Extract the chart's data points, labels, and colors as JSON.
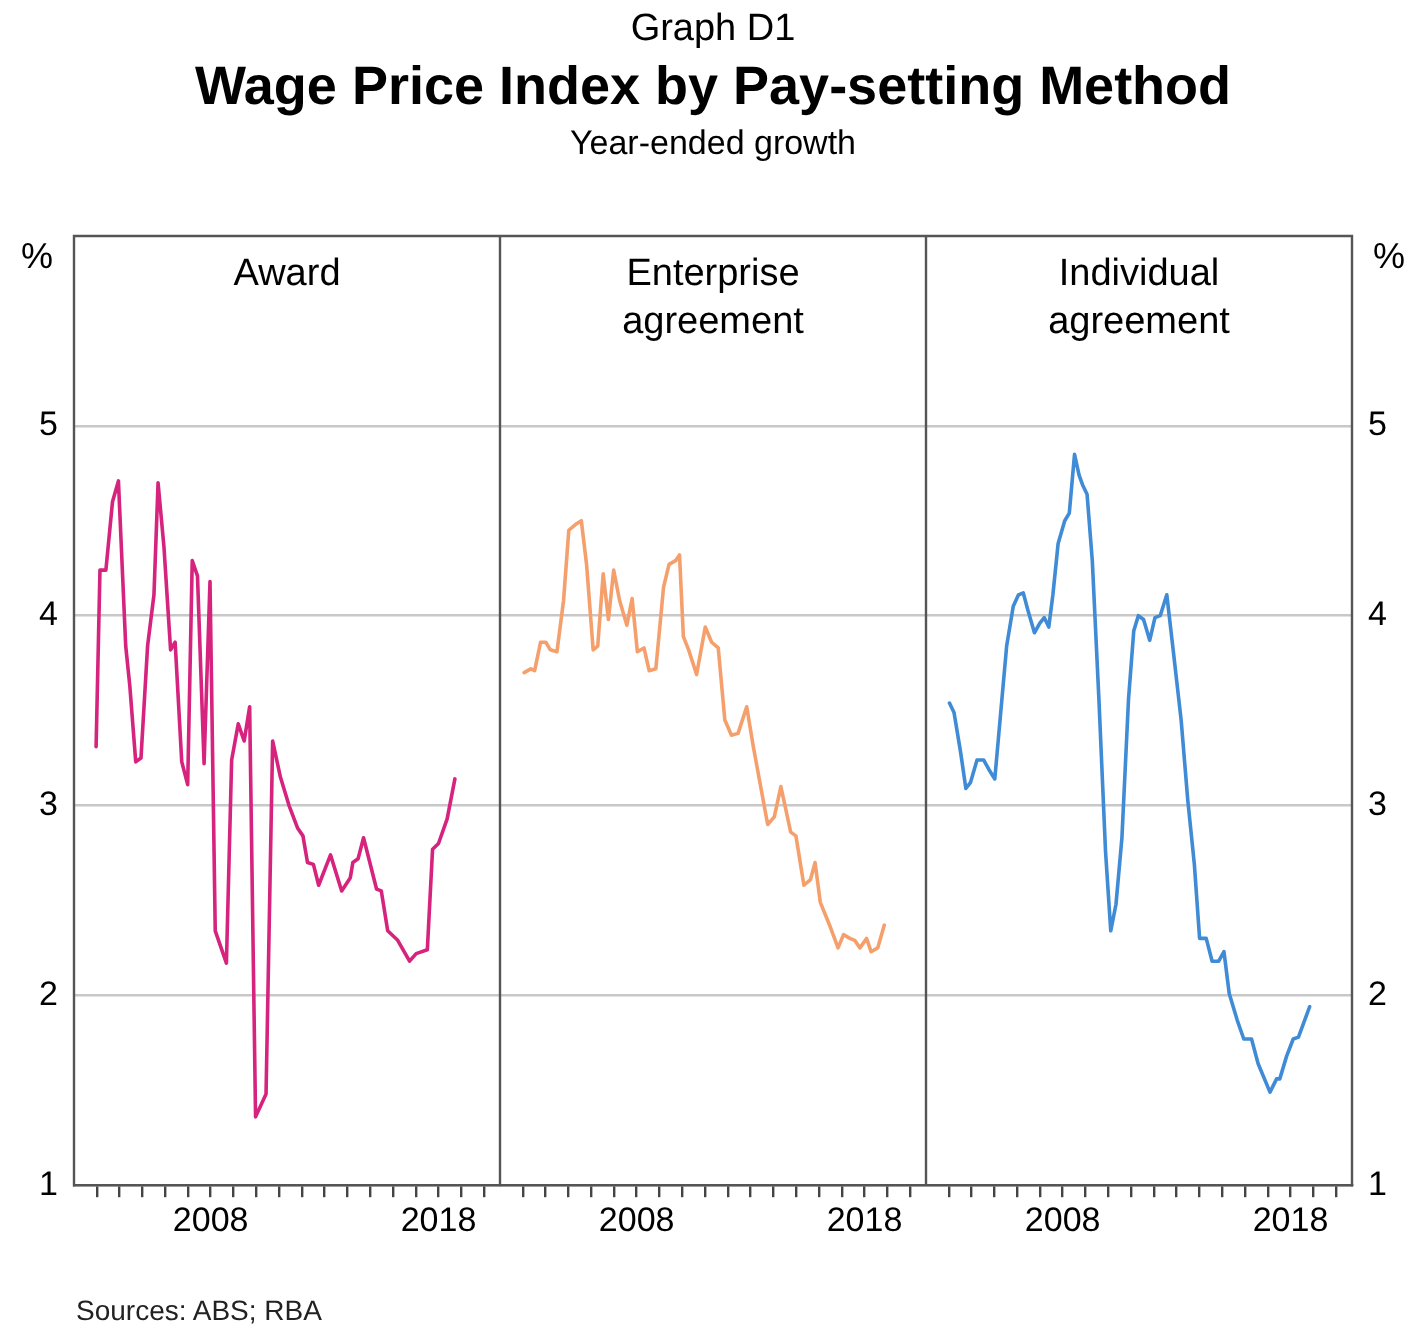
{
  "chart_data": [
    {
      "type": "other",
      "title": "Wage Price Index by Pay-setting Method",
      "subtitle": "Year-ended growth",
      "annotations": [
        "Graph D1"
      ]
    },
    {
      "type": "line",
      "annotations": [
        "Sources: ABS; RBA"
      ],
      "ylabel": "%",
      "grid": "y",
      "marker": "none",
      "line_style": "solid",
      "xlim": [
        2002,
        2020.7
      ],
      "xticks": [
        {
          "value": 2003,
          "label": null
        },
        {
          "value": 2004,
          "label": null
        },
        {
          "value": 2005,
          "label": null
        },
        {
          "value": 2006,
          "label": null
        },
        {
          "value": 2007,
          "label": null
        },
        {
          "value": 2008,
          "label": "2008"
        },
        {
          "value": 2009,
          "label": null
        },
        {
          "value": 2010,
          "label": null
        },
        {
          "value": 2011,
          "label": null
        },
        {
          "value": 2012,
          "label": null
        },
        {
          "value": 2013,
          "label": null
        },
        {
          "value": 2014,
          "label": null
        },
        {
          "value": 2015,
          "label": null
        },
        {
          "value": 2016,
          "label": null
        },
        {
          "value": 2017,
          "label": null
        },
        {
          "value": 2018,
          "label": "2018"
        },
        {
          "value": 2019,
          "label": null
        },
        {
          "value": 2020,
          "label": null
        }
      ],
      "ylim": [
        1,
        6
      ],
      "yticks": [
        1,
        2,
        3,
        4,
        5
      ],
      "series": [
        {
          "name": "Award",
          "color": "#d6237e",
          "x": [
            2002.97,
            2003.14,
            2003.4,
            2003.69,
            2003.95,
            2004.27,
            2004.45,
            2004.71,
            2004.94,
            2005.23,
            2005.51,
            2005.69,
            2005.95,
            2006.24,
            2006.44,
            2006.73,
            2006.99,
            2007.19,
            2007.42,
            2007.71,
            2007.97,
            2008.2,
            2008.69,
            2008.92,
            2009.21,
            2009.47,
            2009.71,
            2009.97,
            2010.43,
            2010.72,
            2011.06,
            2011.44,
            2011.82,
            2012.05,
            2012.25,
            2012.51,
            2012.74,
            2013.26,
            2013.75,
            2014.13,
            2014.24,
            2014.47,
            2014.71,
            2015.28,
            2015.49,
            2015.77,
            2016.21,
            2016.73,
            2017.02,
            2017.51,
            2017.74,
            2018,
            2018.38,
            2018.72
          ],
          "values": [
            3.31,
            4.24,
            4.24,
            4.6,
            4.71,
            3.84,
            3.63,
            3.23,
            3.25,
            3.84,
            4.11,
            4.7,
            4.36,
            3.82,
            3.86,
            3.23,
            3.11,
            4.29,
            4.21,
            3.22,
            4.18,
            2.34,
            2.17,
            3.24,
            3.43,
            3.34,
            3.52,
            1.36,
            1.48,
            3.34,
            3.15,
            3.0,
            2.88,
            2.84,
            2.7,
            2.69,
            2.58,
            2.74,
            2.55,
            2.62,
            2.7,
            2.72,
            2.83,
            2.56,
            2.55,
            2.34,
            2.29,
            2.18,
            2.22,
            2.24,
            2.77,
            2.8,
            2.93,
            3.14
          ]
        }
      ]
    },
    {
      "type": "line",
      "grid": "y",
      "marker": "none",
      "line_style": "solid",
      "tick_labels": "x",
      "xlim": [
        2002,
        2020.7
      ],
      "xticks": [
        {
          "value": 2003,
          "label": null
        },
        {
          "value": 2004,
          "label": null
        },
        {
          "value": 2005,
          "label": null
        },
        {
          "value": 2006,
          "label": null
        },
        {
          "value": 2007,
          "label": null
        },
        {
          "value": 2008,
          "label": "2008"
        },
        {
          "value": 2009,
          "label": null
        },
        {
          "value": 2010,
          "label": null
        },
        {
          "value": 2011,
          "label": null
        },
        {
          "value": 2012,
          "label": null
        },
        {
          "value": 2013,
          "label": null
        },
        {
          "value": 2014,
          "label": null
        },
        {
          "value": 2015,
          "label": null
        },
        {
          "value": 2016,
          "label": null
        },
        {
          "value": 2017,
          "label": null
        },
        {
          "value": 2018,
          "label": "2018"
        },
        {
          "value": 2019,
          "label": null
        },
        {
          "value": 2020,
          "label": null
        }
      ],
      "ylim": [
        1,
        6
      ],
      "yticks": [
        1,
        2,
        3,
        4,
        5
      ],
      "series": [
        {
          "name": "Enterprise agreement",
          "color": "#f5a06c",
          "x": [
            2003.06,
            2003.35,
            2003.52,
            2003.78,
            2004.01,
            2004.21,
            2004.5,
            2004.79,
            2005.02,
            2005.31,
            2005.57,
            2005.8,
            2006.09,
            2006.29,
            2006.53,
            2006.76,
            2006.99,
            2007.25,
            2007.57,
            2007.8,
            2008.03,
            2008.32,
            2008.55,
            2008.84,
            2009.18,
            2009.42,
            2009.71,
            2009.88,
            2010.05,
            2010.28,
            2010.63,
            2011.01,
            2011.29,
            2011.58,
            2011.87,
            2012.16,
            2012.45,
            2012.83,
            2013.12,
            2013.75,
            2014.04,
            2014.33,
            2014.76,
            2014.99,
            2015.34,
            2015.63,
            2015.83,
            2016.06,
            2016.5,
            2016.84,
            2017.08,
            2017.36,
            2017.57,
            2017.8,
            2018.09,
            2018.29,
            2018.58,
            2018.87
          ],
          "values": [
            3.7,
            3.72,
            3.71,
            3.86,
            3.86,
            3.82,
            3.81,
            4.08,
            4.45,
            4.48,
            4.5,
            4.27,
            3.82,
            3.84,
            4.22,
            3.98,
            4.24,
            4.08,
            3.95,
            4.09,
            3.81,
            3.83,
            3.71,
            3.72,
            4.15,
            4.27,
            4.29,
            4.32,
            3.89,
            3.82,
            3.69,
            3.94,
            3.86,
            3.83,
            3.45,
            3.37,
            3.38,
            3.52,
            3.31,
            2.9,
            2.94,
            3.1,
            2.86,
            2.84,
            2.58,
            2.61,
            2.7,
            2.49,
            2.36,
            2.25,
            2.32,
            2.3,
            2.29,
            2.25,
            2.3,
            2.23,
            2.25,
            2.37
          ]
        }
      ]
    },
    {
      "type": "line",
      "y2label": "%",
      "grid": "y",
      "marker": "none",
      "line_style": "solid",
      "xlim": [
        2002,
        2020.7
      ],
      "xticks": [
        {
          "value": 2003,
          "label": null
        },
        {
          "value": 2004,
          "label": null
        },
        {
          "value": 2005,
          "label": null
        },
        {
          "value": 2006,
          "label": null
        },
        {
          "value": 2007,
          "label": null
        },
        {
          "value": 2008,
          "label": "2008"
        },
        {
          "value": 2009,
          "label": null
        },
        {
          "value": 2010,
          "label": null
        },
        {
          "value": 2011,
          "label": null
        },
        {
          "value": 2012,
          "label": null
        },
        {
          "value": 2013,
          "label": null
        },
        {
          "value": 2014,
          "label": null
        },
        {
          "value": 2015,
          "label": null
        },
        {
          "value": 2016,
          "label": null
        },
        {
          "value": 2017,
          "label": null
        },
        {
          "value": 2018,
          "label": "2018"
        },
        {
          "value": 2019,
          "label": null
        },
        {
          "value": 2020,
          "label": null
        }
      ],
      "y2lim": [
        1,
        6
      ],
      "y2ticks": [
        1,
        2,
        3,
        4,
        5
      ],
      "series": [
        {
          "name": "Individual agreement",
          "color": "#3f8bd6",
          "axis": "y2",
          "x": [
            2003.03,
            2003.23,
            2003.52,
            2003.75,
            2003.95,
            2004.24,
            2004.53,
            2004.76,
            2005.02,
            2005.25,
            2005.54,
            2005.83,
            2006.06,
            2006.27,
            2006.47,
            2006.76,
            2006.99,
            2007.19,
            2007.39,
            2007.57,
            2007.8,
            2008.09,
            2008.29,
            2008.52,
            2008.72,
            2008.87,
            2009.07,
            2009.3,
            2009.59,
            2009.88,
            2010.11,
            2010.34,
            2010.6,
            2010.89,
            2011.12,
            2011.32,
            2011.55,
            2011.82,
            2012.05,
            2012.28,
            2012.57,
            2012.83,
            2013.2,
            2013.49,
            2013.78,
            2014.01,
            2014.3,
            2014.56,
            2014.85,
            2015.08,
            2015.31,
            2015.66,
            2015.95,
            2016.29,
            2016.58,
            2017.1,
            2017.39,
            2017.53,
            2017.83,
            2018.12,
            2018.35,
            2018.84
          ],
          "values": [
            3.54,
            3.49,
            3.28,
            3.09,
            3.12,
            3.24,
            3.24,
            3.19,
            3.14,
            3.45,
            3.84,
            4.05,
            4.11,
            4.12,
            4.03,
            3.91,
            3.96,
            3.99,
            3.94,
            4.11,
            4.38,
            4.5,
            4.54,
            4.85,
            4.74,
            4.69,
            4.64,
            4.29,
            3.56,
            2.76,
            2.34,
            2.48,
            2.83,
            3.56,
            3.92,
            4.0,
            3.98,
            3.87,
            3.99,
            4.0,
            4.11,
            3.84,
            3.45,
            3.03,
            2.69,
            2.3,
            2.3,
            2.18,
            2.18,
            2.23,
            2.01,
            1.87,
            1.77,
            1.77,
            1.64,
            1.49,
            1.56,
            1.56,
            1.68,
            1.77,
            1.78,
            1.94
          ]
        }
      ]
    }
  ]
}
